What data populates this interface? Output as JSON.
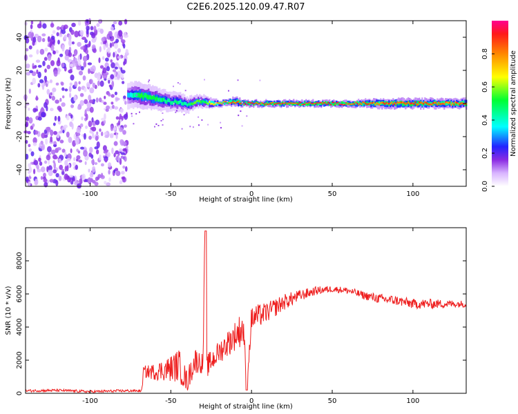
{
  "title": "C2E6.2025.120.09.47.R07",
  "colors": {
    "snr_line": "#ee1c1c",
    "axis": "#000000"
  },
  "chart_data": [
    {
      "type": "heatmap",
      "xlabel": "Height of straight line (km)",
      "ylabel": "Frequency (Hz)",
      "xlim": [
        -140,
        133
      ],
      "ylim": [
        -50,
        50
      ],
      "xticks": [
        -100,
        -50,
        0,
        50,
        100
      ],
      "yticks": [
        -40,
        -20,
        0,
        20,
        40
      ],
      "colorbar": {
        "label": "Normalized spectral amplitude",
        "range": [
          0,
          1
        ],
        "ticks": [
          0.0,
          0.2,
          0.4,
          0.6,
          0.8
        ]
      },
      "noise_region": {
        "x": [
          -140,
          -77
        ],
        "amplitude": 0.1
      },
      "signal_ridge": {
        "x": [
          -77,
          -70,
          -60,
          -50,
          -45,
          -40,
          -35,
          -30,
          -25,
          -20,
          -15,
          -10,
          -5,
          0,
          20,
          40,
          60,
          80,
          100,
          120,
          133
        ],
        "freq": [
          5,
          5,
          3,
          1,
          1,
          -1,
          1,
          1,
          0,
          0,
          1,
          1,
          0,
          0,
          0,
          0,
          0,
          0,
          0,
          0,
          0
        ],
        "amplitude": [
          0.35,
          0.55,
          0.55,
          0.45,
          0.5,
          0.45,
          0.65,
          0.55,
          0.75,
          0.8,
          0.9,
          0.9,
          0.95,
          0.95,
          0.95,
          0.95,
          0.95,
          0.9,
          0.95,
          0.9,
          0.9
        ],
        "halfwidth": [
          8,
          8,
          7,
          6,
          6,
          5,
          4,
          4,
          3,
          2,
          2,
          3,
          2,
          2,
          2,
          2,
          2,
          3,
          3,
          3,
          3
        ]
      }
    },
    {
      "type": "line",
      "xlabel": "Height of straight line (km)",
      "ylabel": "SNR (10 * v/v)",
      "xlim": [
        -140,
        133
      ],
      "ylim": [
        0,
        10000
      ],
      "xticks": [
        -100,
        -50,
        0,
        50,
        100
      ],
      "yticks": [
        0,
        2000,
        4000,
        6000,
        8000
      ],
      "series": [
        {
          "x": [
            -140,
            -120,
            -100,
            -80,
            -68,
            -67,
            -60,
            -50,
            -45,
            -40,
            -35,
            -30,
            -29,
            -28,
            -27,
            -20,
            -10,
            -5,
            -3,
            0,
            10,
            20,
            30,
            40,
            50,
            60,
            70,
            80,
            90,
            100,
            110,
            120,
            133
          ],
          "values": [
            150,
            180,
            100,
            150,
            150,
            1300,
            1300,
            1500,
            1700,
            700,
            2000,
            1800,
            9800,
            1600,
            1700,
            2500,
            3500,
            4000,
            200,
            4500,
            4900,
            5500,
            5900,
            6200,
            6300,
            6200,
            5900,
            5700,
            5600,
            5400,
            5400,
            5400,
            5400
          ],
          "spread": [
            80,
            80,
            80,
            80,
            80,
            350,
            500,
            800,
            1000,
            700,
            800,
            600,
            0,
            600,
            700,
            700,
            900,
            1100,
            0,
            800,
            600,
            500,
            350,
            250,
            200,
            200,
            250,
            300,
            300,
            300,
            300,
            250,
            200
          ]
        }
      ]
    }
  ]
}
